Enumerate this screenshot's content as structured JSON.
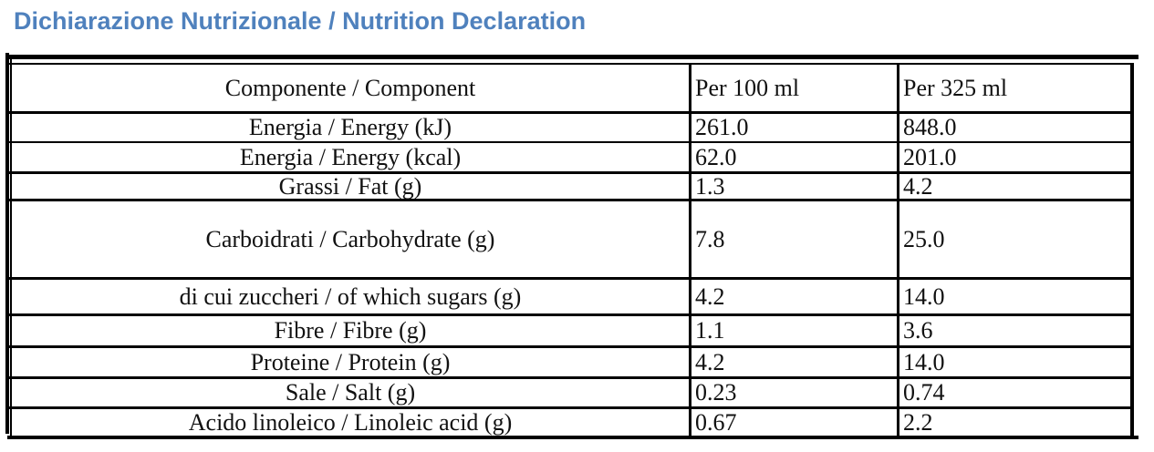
{
  "title": "Dichiarazione Nutrizionale / Nutrition Declaration",
  "table": {
    "headers": [
      "Componente / Component",
      "Per 100 ml",
      "Per 325 ml"
    ],
    "rows": [
      {
        "component": "Energia / Energy (kJ)",
        "per100": "261.0",
        "per325": "848.0"
      },
      {
        "component": "Energia / Energy (kcal)",
        "per100": "62.0",
        "per325": "201.0"
      },
      {
        "component": "Grassi / Fat (g)",
        "per100": "1.3",
        "per325": "4.2"
      },
      {
        "component": "Carboidrati / Carbohydrate (g)",
        "per100": "7.8",
        "per325": "25.0"
      },
      {
        "component": "di cui zuccheri / of which sugars (g)",
        "per100": "4.2",
        "per325": "14.0"
      },
      {
        "component": "Fibre / Fibre (g)",
        "per100": "1.1",
        "per325": "3.6"
      },
      {
        "component": "Proteine / Protein (g)",
        "per100": "4.2",
        "per325": "14.0"
      },
      {
        "component": "Sale / Salt (g)",
        "per100": "0.23",
        "per325": "0.74"
      },
      {
        "component": "Acido linoleico / Linoleic acid (g)",
        "per100": "0.67",
        "per325": "2.2"
      }
    ]
  }
}
